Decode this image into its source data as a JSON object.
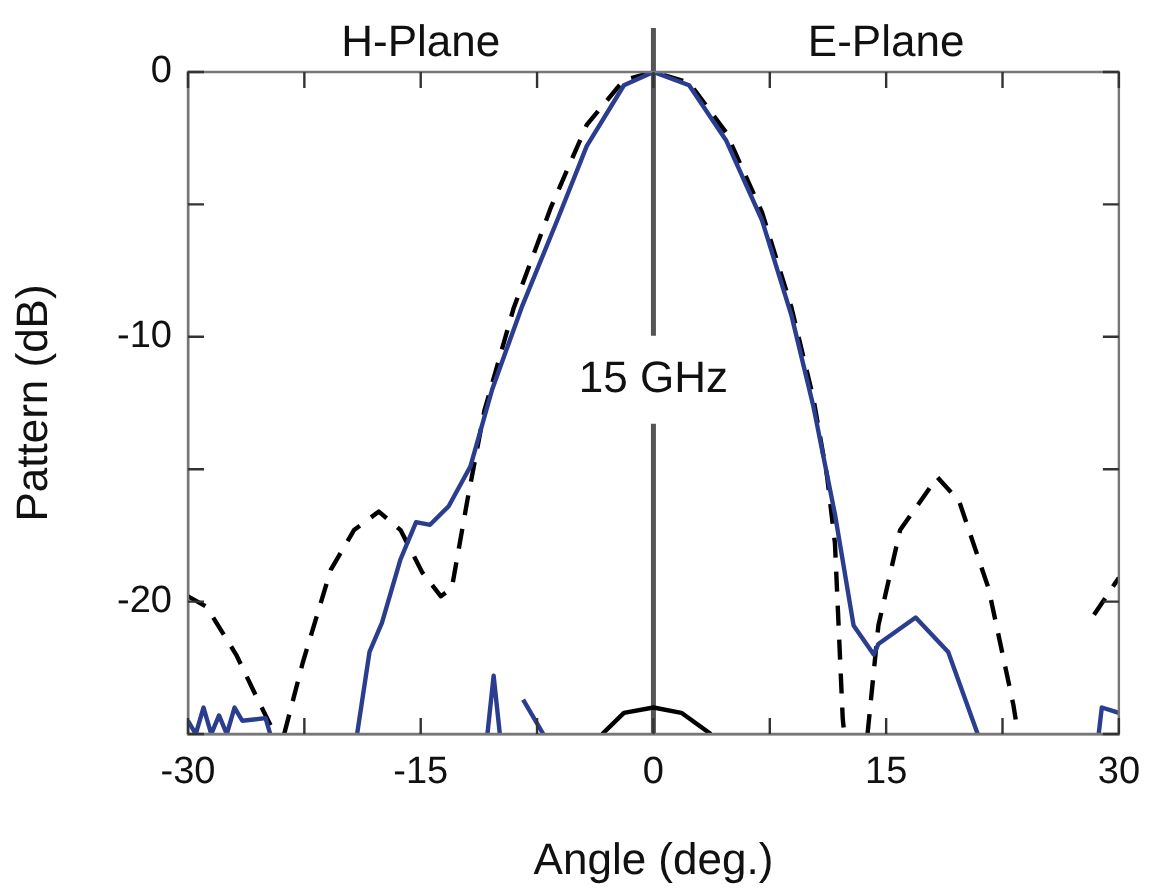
{
  "chart_data": {
    "type": "line",
    "xlabel": "Angle (deg.)",
    "ylabel": "Pattern (dB)",
    "xlim": [
      -30,
      30
    ],
    "ylim": [
      -25,
      0
    ],
    "xticks": [
      -30,
      {
        "value": -22.5,
        "label": null
      },
      -15,
      {
        "value": -7.5,
        "label": null
      },
      0,
      {
        "value": 7.5,
        "label": null
      },
      15,
      {
        "value": 22.5,
        "label": null
      },
      30
    ],
    "yticks": [
      {
        "value": -25,
        "label": null
      },
      -20,
      {
        "value": -15,
        "label": null
      },
      -10,
      {
        "value": -5,
        "label": null
      },
      0
    ],
    "grid": false,
    "legend": false,
    "marker": "none",
    "annotations": [
      "H-Plane",
      "E-Plane"
    ],
    "ref_lines": [
      {
        "axis": "x",
        "value": 0,
        "label": "15 GHz",
        "color": "#555555"
      }
    ],
    "series": [
      {
        "color": "#2b3d8f",
        "line_style": "solid",
        "x": [
          -30,
          -29.5,
          -29,
          -28.5,
          -28,
          -27.5,
          -27,
          -26.5,
          -25,
          -24.7,
          -24,
          -19.1,
          -18.3,
          -17.5,
          -16.3,
          -15.3,
          -14.4,
          -13.2,
          -11.8,
          -10.4,
          -8.5,
          -6.2,
          -4.3,
          -1.9,
          0,
          2.3,
          4.7,
          7,
          8.9,
          10.3,
          11.7,
          12.9,
          14.2,
          14.5,
          16.9,
          19,
          20.9,
          25,
          28.7,
          28.9,
          30
        ],
        "values": [
          -24.5,
          -25,
          -24,
          -25,
          -24.3,
          -25,
          -24,
          -24.5,
          -24.4,
          -25,
          null,
          -25,
          -21.9,
          -20.8,
          -18.4,
          -17,
          -17.1,
          -16.4,
          -14.9,
          -12,
          -8.9,
          -5.6,
          -2.8,
          -0.5,
          0,
          -0.5,
          -2.6,
          -5.6,
          -9.2,
          -12.6,
          -16.7,
          -20.9,
          -22,
          -21.6,
          -20.6,
          -21.9,
          -25,
          null,
          -25,
          -24,
          -24.2
        ]
      },
      {
        "color": "#2b3d8f",
        "line_style": "solid",
        "x": [
          -10.7,
          -10.3,
          -9.9,
          -9.2,
          -8.4,
          -7.1
        ],
        "values": [
          -25,
          -22.8,
          -25,
          null,
          -23.7,
          -25
        ]
      },
      {
        "color": "#000000",
        "line_style": "dashed",
        "x": [
          -30,
          -28.8,
          -26.9,
          -25.5,
          -24.4,
          -24.1,
          -23.8,
          -22.6,
          -20.8,
          -19.3,
          -17.7,
          -16.3,
          -14.9,
          -13.7,
          -13,
          -12,
          -10.9,
          -9,
          -6.6,
          -4.3,
          -1.9,
          0,
          2.3,
          4.7,
          7,
          8.9,
          10.3,
          11.2,
          11.7,
          12.2,
          12.3,
          13,
          13.8,
          14.5,
          15.9,
          18.3,
          19.7,
          21.6,
          23.2,
          23.5,
          26,
          28.4,
          30
        ],
        "values": [
          -19.8,
          -20.2,
          -22,
          -23.7,
          -25,
          null,
          -25,
          -22.3,
          -18.8,
          -17.3,
          -16.6,
          -17.3,
          -18.9,
          -19.8,
          -19.5,
          -16.2,
          -12.8,
          -8.9,
          -5.1,
          -2,
          -0.3,
          0,
          -0.4,
          -2.3,
          -5.3,
          -8.9,
          -12.3,
          -15.3,
          -17.8,
          -24.4,
          -25,
          null,
          -25,
          -20.9,
          -17.3,
          -15.3,
          -16.2,
          -19.5,
          -23.9,
          -25,
          null,
          -20.5,
          -19.1
        ]
      },
      {
        "color": "#000000",
        "line_style": "solid",
        "x": [
          -3.3,
          -1.9,
          0,
          1.8,
          3.7
        ],
        "values": [
          -25,
          -24.2,
          -24,
          -24.2,
          -25
        ]
      }
    ]
  }
}
